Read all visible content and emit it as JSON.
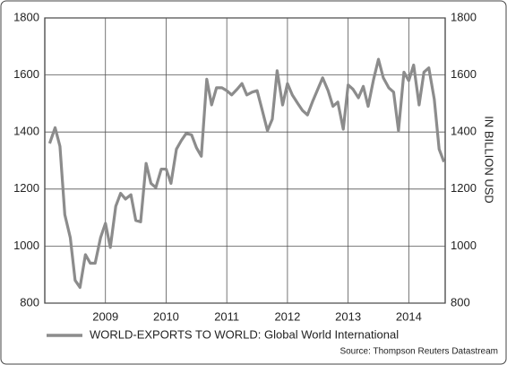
{
  "chart_data": {
    "type": "line",
    "ylabel": "IN BILLION USD",
    "source": "Source: Thompson Reuters Datastream",
    "x": [
      2008.08,
      2008.17,
      2008.25,
      2008.33,
      2008.42,
      2008.5,
      2008.58,
      2008.67,
      2008.75,
      2008.83,
      2008.92,
      2009,
      2009.08,
      2009.17,
      2009.25,
      2009.33,
      2009.42,
      2009.5,
      2009.58,
      2009.67,
      2009.75,
      2009.83,
      2009.92,
      2010,
      2010.08,
      2010.17,
      2010.25,
      2010.33,
      2010.42,
      2010.5,
      2010.58,
      2010.67,
      2010.75,
      2010.83,
      2010.92,
      2011,
      2011.08,
      2011.17,
      2011.25,
      2011.33,
      2011.42,
      2011.5,
      2011.58,
      2011.67,
      2011.75,
      2011.83,
      2011.92,
      2012,
      2012.08,
      2012.17,
      2012.25,
      2012.33,
      2012.42,
      2012.5,
      2012.58,
      2012.67,
      2012.75,
      2012.83,
      2012.92,
      2013,
      2013.08,
      2013.17,
      2013.25,
      2013.33,
      2013.42,
      2013.5,
      2013.58,
      2013.67,
      2013.75,
      2013.83,
      2013.92,
      2014,
      2014.08,
      2014.17,
      2014.25,
      2014.33,
      2014.42,
      2014.5,
      2014.58
    ],
    "series": [
      {
        "name": "WORLD-EXPORTS TO WORLD: Global World International",
        "color": "#8c8c8c",
        "values": [
          1360,
          1415,
          1350,
          1110,
          1030,
          880,
          855,
          970,
          940,
          940,
          1030,
          1080,
          995,
          1140,
          1185,
          1165,
          1180,
          1090,
          1085,
          1290,
          1220,
          1205,
          1270,
          1270,
          1220,
          1340,
          1370,
          1395,
          1390,
          1345,
          1315,
          1585,
          1495,
          1555,
          1555,
          1545,
          1530,
          1550,
          1570,
          1530,
          1540,
          1545,
          1480,
          1405,
          1445,
          1615,
          1495,
          1570,
          1530,
          1500,
          1475,
          1460,
          1510,
          1550,
          1590,
          1545,
          1490,
          1505,
          1410,
          1565,
          1550,
          1520,
          1560,
          1490,
          1585,
          1655,
          1590,
          1555,
          1540,
          1405,
          1610,
          1580,
          1635,
          1495,
          1610,
          1625,
          1515,
          1340,
          1295
        ]
      }
    ],
    "xlim": [
      2008,
      2014.6
    ],
    "xticks": [
      2009,
      2010,
      2011,
      2012,
      2013,
      2014
    ],
    "ylim": [
      800,
      1800
    ],
    "yticks": [
      800,
      1000,
      1200,
      1400,
      1600,
      1800
    ],
    "grid": true
  }
}
